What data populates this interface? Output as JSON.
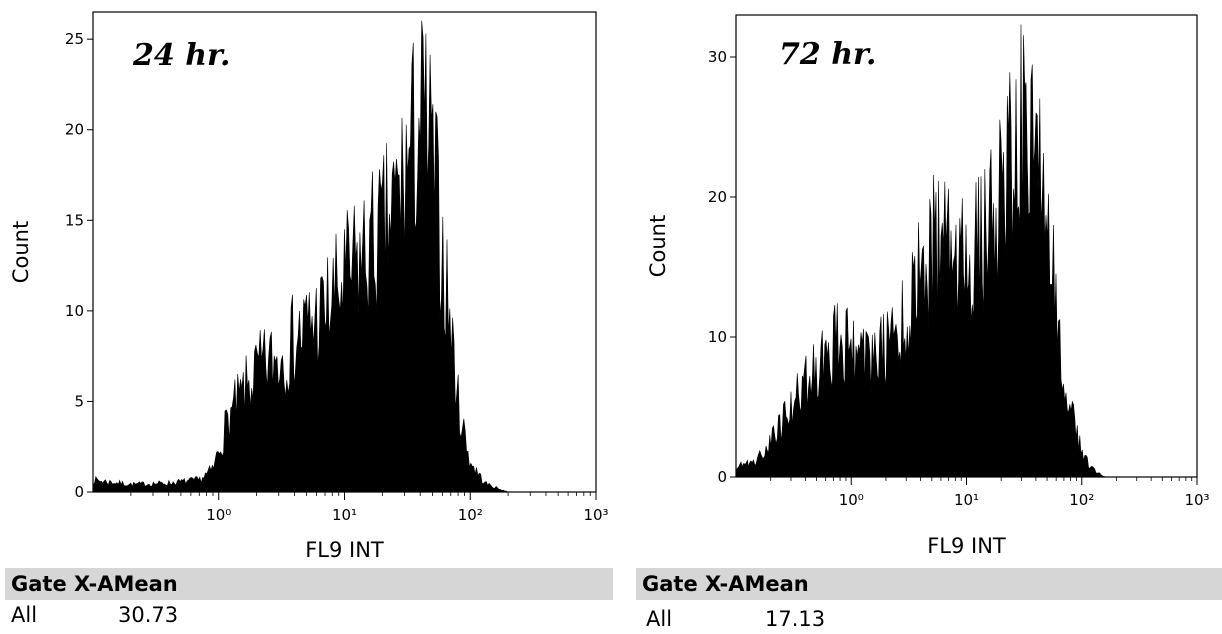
{
  "chart_data": [
    {
      "type": "area",
      "title": "24 hr.",
      "xlabel": "FL9 INT",
      "ylabel": "Count",
      "xscale": "log",
      "xlim": [
        0.1,
        1000
      ],
      "ylim": [
        0,
        26.5
      ],
      "x_ticks": [
        "10⁰",
        "10¹",
        "10²",
        "10³"
      ],
      "y_ticks": [
        "0",
        "5",
        "10",
        "15",
        "20",
        "25"
      ],
      "y_tick_values": [
        0,
        5,
        10,
        15,
        20,
        25
      ],
      "envelope": {
        "x": [
          0.1,
          0.2,
          0.4,
          0.7,
          0.9,
          1.2,
          2,
          3,
          5,
          7,
          10,
          15,
          20,
          25,
          30,
          35,
          40,
          45,
          50,
          60,
          70,
          80,
          100,
          130,
          170,
          200
        ],
        "y": [
          0.8,
          0.5,
          0.6,
          0.8,
          1.5,
          5,
          8,
          9,
          11,
          12,
          14,
          16,
          17,
          19,
          21,
          23,
          25,
          24,
          22,
          16,
          11,
          6,
          2,
          0.6,
          0.2,
          0
        ]
      },
      "stats": {
        "header": "Gate X-AMean",
        "gate": "All",
        "value": "30.73"
      }
    },
    {
      "type": "area",
      "title": "72 hr.",
      "xlabel": "FL9 INT",
      "ylabel": "Count",
      "xscale": "log",
      "xlim": [
        0.1,
        1000
      ],
      "ylim": [
        0,
        33
      ],
      "x_ticks": [
        "10⁰",
        "10¹",
        "10²",
        "10³"
      ],
      "y_ticks": [
        "0",
        "10",
        "20",
        "30"
      ],
      "y_tick_values": [
        0,
        10,
        20,
        30
      ],
      "envelope": {
        "x": [
          0.1,
          0.15,
          0.2,
          0.3,
          0.5,
          0.8,
          1,
          1.5,
          2,
          3,
          4,
          5,
          7,
          10,
          15,
          20,
          25,
          30,
          35,
          40,
          50,
          60,
          80,
          100,
          130,
          160
        ],
        "y": [
          0.8,
          1.5,
          3,
          6,
          10,
          12,
          11,
          10,
          11,
          14,
          17,
          20,
          19,
          18,
          21,
          25,
          28,
          30,
          29,
          27,
          22,
          15,
          6,
          2,
          0.5,
          0
        ]
      },
      "stats": {
        "header": "Gate X-AMean",
        "gate": "All",
        "value": "17.13"
      }
    }
  ]
}
